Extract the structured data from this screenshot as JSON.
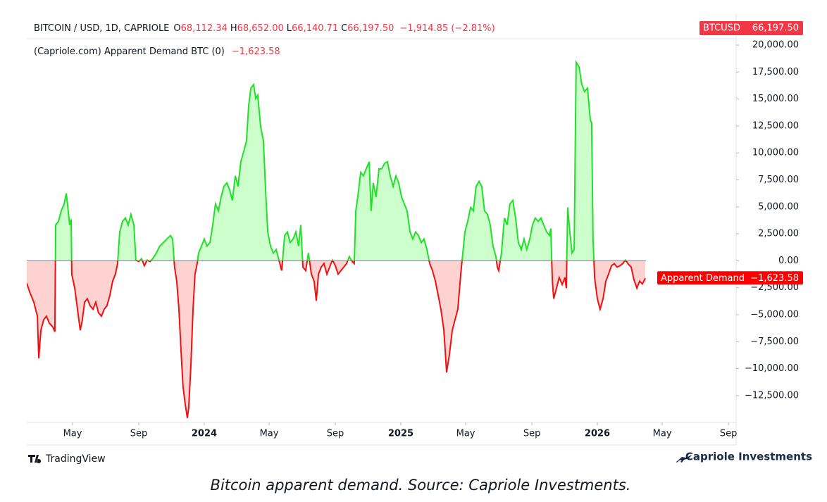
{
  "header": {
    "symbol": "BITCOIN / USD, 1D, CAPRIOLE",
    "open_key": "O",
    "open": "68,112.34",
    "high_key": "H",
    "high": "68,652.00",
    "low_key": "L",
    "low": "66,140.71",
    "close_key": "C",
    "close": "66,197.50",
    "change": "−1,914.85 (−2.81%)",
    "badge_symbol": "BTCUSD",
    "badge_price": "66,197.50"
  },
  "chart_data": {
    "type": "area",
    "legend_label": "(Capriole.com) Apparent Demand BTC (0)",
    "legend_value": "−1,623.58",
    "series": [
      {
        "name": "Apparent Demand",
        "last_label": "−1,623.58",
        "positive_color": "#22e02a",
        "negative_color": "#ee1111",
        "positive_fill": "#ccffcc",
        "negative_fill": "#ffd2d2",
        "x": [
          2023.097,
          2023.111,
          2023.133,
          2023.151,
          2023.158,
          2023.169,
          2023.183,
          2023.197,
          2023.212,
          2023.229,
          2023.24,
          2023.244,
          2023.258,
          2023.272,
          2023.287,
          2023.298,
          2023.308,
          2023.315,
          2023.323,
          2023.326,
          2023.341,
          2023.355,
          2023.369,
          2023.38,
          2023.391,
          2023.405,
          2023.419,
          2023.434,
          2023.448,
          2023.462,
          2023.477,
          2023.491,
          2023.505,
          2023.52,
          2023.534,
          2023.548,
          2023.559,
          2023.57,
          2023.584,
          2023.599,
          2023.613,
          2023.627,
          2023.642,
          2023.652,
          2023.667,
          2023.681,
          2023.695,
          2023.71,
          2023.724,
          2023.738,
          2023.756,
          2023.774,
          2023.792,
          2023.81,
          2023.828,
          2023.839,
          2023.849,
          2023.86,
          2023.871,
          2023.882,
          2023.892,
          2023.903,
          2023.914,
          2023.921,
          2023.932,
          2023.943,
          2023.953,
          2023.964,
          2023.971,
          2023.986,
          2024.0,
          2024.014,
          2024.029,
          2024.043,
          2024.057,
          2024.072,
          2024.086,
          2024.1,
          2024.115,
          2024.129,
          2024.143,
          2024.158,
          2024.172,
          2024.186,
          2024.201,
          2024.215,
          2024.226,
          2024.237,
          2024.251,
          2024.262,
          2024.272,
          2024.287,
          2024.301,
          2024.312,
          2024.323,
          2024.337,
          2024.351,
          2024.366,
          2024.38,
          2024.394,
          2024.409,
          2024.423,
          2024.437,
          2024.452,
          2024.466,
          2024.48,
          2024.491,
          2024.502,
          2024.516,
          2024.53,
          2024.545,
          2024.559,
          2024.57,
          2024.581,
          2024.595,
          2024.609,
          2024.624,
          2024.638,
          2024.652,
          2024.667,
          2024.681,
          2024.695,
          2024.71,
          2024.724,
          2024.738,
          2024.753,
          2024.763,
          2024.771,
          2024.781,
          2024.796,
          2024.81,
          2024.824,
          2024.839,
          2024.849,
          2024.86,
          2024.874,
          2024.889,
          2024.903,
          2024.918,
          2024.932,
          2024.946,
          2024.961,
          2024.975,
          2024.989,
          2025.004,
          2025.018,
          2025.032,
          2025.047,
          2025.061,
          2025.075,
          2025.09,
          2025.104,
          2025.118,
          2025.133,
          2025.147,
          2025.161,
          2025.176,
          2025.19,
          2025.204,
          2025.219,
          2025.233,
          2025.247,
          2025.262,
          2025.276,
          2025.29,
          2025.305,
          2025.312,
          2025.326,
          2025.34,
          2025.355,
          2025.369,
          2025.383,
          2025.398,
          2025.412,
          2025.426,
          2025.441,
          2025.455,
          2025.469,
          2025.484,
          2025.491,
          2025.498,
          2025.512,
          2025.527,
          2025.541,
          2025.555,
          2025.57,
          2025.584,
          2025.598,
          2025.613,
          2025.627,
          2025.641,
          2025.656,
          2025.67,
          2025.684,
          2025.699,
          2025.713,
          2025.727,
          2025.742,
          2025.756,
          2025.763,
          2025.771,
          2025.778,
          2025.792,
          2025.806,
          2025.821,
          2025.835,
          2025.842,
          2025.849,
          2025.86,
          2025.871,
          2025.882,
          2025.892,
          2025.907,
          2025.921,
          2025.935,
          2025.95,
          2025.964,
          2025.971,
          2025.978,
          2025.986,
          2026.0,
          2026.014,
          2026.029,
          2026.043,
          2026.057,
          2026.072,
          2026.086,
          2026.1,
          2026.115,
          2026.129,
          2026.143,
          2026.158,
          2026.172,
          2026.186,
          2026.201,
          2026.215,
          2026.229,
          2026.244
        ],
        "values": [
          -2080,
          -2860,
          -3840,
          -5140,
          -9050,
          -6440,
          -5470,
          -5140,
          -5790,
          -6120,
          -6580,
          3320,
          3650,
          4620,
          5270,
          6250,
          4620,
          3320,
          3840,
          -1240,
          -2540,
          -4490,
          -6440,
          -5470,
          -3840,
          -3520,
          -4170,
          -4490,
          -3840,
          -4820,
          -5140,
          -4490,
          -4170,
          -3190,
          -1890,
          -1240,
          -260,
          2670,
          3650,
          3970,
          3320,
          4300,
          3320,
          70,
          -70,
          200,
          -460,
          70,
          -70,
          200,
          720,
          1370,
          1690,
          2020,
          2340,
          2020,
          -590,
          -1890,
          -4490,
          -8400,
          -11650,
          -13280,
          -14580,
          -13610,
          -9700,
          -4490,
          -1240,
          -260,
          720,
          1370,
          2020,
          1370,
          1690,
          3320,
          5270,
          4620,
          5920,
          6900,
          7230,
          6580,
          5600,
          7880,
          6900,
          9180,
          10160,
          11130,
          14390,
          16010,
          16340,
          15040,
          15360,
          12430,
          11130,
          6580,
          2670,
          1370,
          720,
          1040,
          70,
          -910,
          2340,
          2670,
          1690,
          2020,
          2670,
          1370,
          3320,
          -590,
          -910,
          720,
          -1240,
          -1890,
          -3710,
          -1240,
          -590,
          -260,
          -1240,
          -590,
          70,
          -460,
          -1240,
          -910,
          -590,
          -260,
          390,
          -70,
          -260,
          4620,
          5920,
          8200,
          7880,
          8530,
          9180,
          4620,
          7230,
          5920,
          8530,
          8530,
          9050,
          9180,
          7880,
          6900,
          7880,
          7230,
          5920,
          5270,
          4620,
          2670,
          2020,
          2670,
          2340,
          1690,
          2020,
          1040,
          -260,
          -910,
          -1890,
          -3190,
          -4490,
          -6440,
          -10350,
          -8720,
          -6440,
          -5470,
          -4490,
          -1240,
          70,
          2670,
          3650,
          4950,
          4620,
          6900,
          7360,
          6900,
          4620,
          4300,
          3320,
          1370,
          390,
          -590,
          -910,
          720,
          3970,
          3320,
          5270,
          5600,
          3970,
          1690,
          1040,
          2020,
          1040,
          2020,
          3320,
          3970,
          3650,
          3970,
          3320,
          2670,
          2340,
          2990,
          -1890,
          -3520,
          -2540,
          -1560,
          -2210,
          -1560,
          -2540,
          4950,
          2670,
          720,
          1040,
          18420,
          17970,
          16340,
          15690,
          16010,
          13090,
          12760,
          2020,
          -1560,
          -3520,
          -4490,
          -3520,
          -1890,
          -1240,
          -460,
          -260,
          -590,
          -460,
          -260,
          70,
          -330,
          -590,
          -1760,
          -2540,
          -1890,
          -2150,
          -1623.58
        ]
      }
    ],
    "baseline": 0,
    "xlim": [
      2023.097,
      2026.706
    ],
    "xticks": [
      {
        "value": 2023.33,
        "label": "May"
      },
      {
        "value": 2023.667,
        "label": "Sep"
      },
      2024,
      {
        "value": 2024.33,
        "label": "May"
      },
      {
        "value": 2024.667,
        "label": "Sep"
      },
      2025,
      {
        "value": 2025.33,
        "label": "May"
      },
      {
        "value": 2025.667,
        "label": "Sep"
      },
      2026,
      {
        "value": 2026.33,
        "label": "May"
      },
      {
        "value": 2026.667,
        "label": "Sep"
      }
    ],
    "ylim": [
      -14990,
      20590
    ],
    "yticks": [
      {
        "value": 20000,
        "label": "20,000.00"
      },
      {
        "value": 17500,
        "label": "17,500.00"
      },
      {
        "value": 15000,
        "label": "15,000.00"
      },
      {
        "value": 12500,
        "label": "12,500.00"
      },
      {
        "value": 10000,
        "label": "10,000.00"
      },
      {
        "value": 7500,
        "label": "7,500.00"
      },
      {
        "value": 5000,
        "label": "5,000.00"
      },
      {
        "value": 2500,
        "label": "2,500.00"
      },
      {
        "value": 0,
        "label": "0.00"
      },
      {
        "value": -2500,
        "label": "−2,500.00"
      },
      {
        "value": -5000,
        "label": "−5,000.00"
      },
      {
        "value": -7500,
        "label": "−7,500.00"
      },
      {
        "value": -10000,
        "label": "−10,000.00"
      },
      {
        "value": -12500,
        "label": "−12,500.00"
      }
    ]
  },
  "footer": {
    "brand_left": "TradingView",
    "brand_right": "Capriole Investments",
    "caption": "Bitcoin apparent demand. Source: Capriole Investments."
  }
}
